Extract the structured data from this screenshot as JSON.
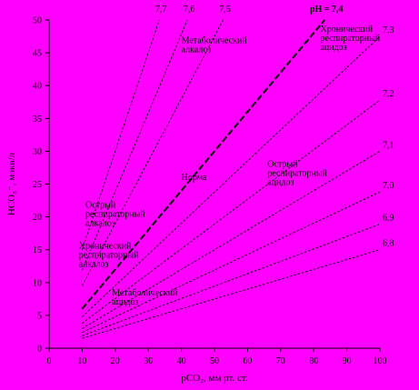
{
  "chart_data": {
    "type": "line",
    "xlabel": "pCO₂, мм рт. ст.",
    "ylabel": "HCO₃⁻, мэкв/л",
    "xlim": [
      0,
      100
    ],
    "ylim": [
      0,
      50
    ],
    "x_ticks": [
      "0",
      "10",
      "20",
      "30",
      "40",
      "50",
      "60",
      "70",
      "80",
      "90",
      "100"
    ],
    "y_ticks": [
      "0",
      "5",
      "10",
      "15",
      "20",
      "25",
      "30",
      "35",
      "40",
      "45",
      "50"
    ],
    "background": "#ff00ff",
    "series": [
      {
        "name": "7,7",
        "x": [
          10,
          33.3
        ],
        "y": [
          15,
          50
        ]
      },
      {
        "name": "7,6",
        "x": [
          10,
          41.8
        ],
        "y": [
          11.9,
          50
        ]
      },
      {
        "name": "7,5",
        "x": [
          10,
          52.6
        ],
        "y": [
          9.5,
          50
        ]
      },
      {
        "name": "pH = 7,4",
        "x": [
          10,
          83.3
        ],
        "y": [
          6,
          50
        ],
        "emphasis": true
      },
      {
        "name": "7,3",
        "x": [
          10,
          100
        ],
        "y": [
          4.8,
          47.5
        ]
      },
      {
        "name": "7,2",
        "x": [
          10,
          100
        ],
        "y": [
          3.8,
          37.8
        ]
      },
      {
        "name": "7,1",
        "x": [
          10,
          100
        ],
        "y": [
          3.0,
          30.0
        ]
      },
      {
        "name": "7,0",
        "x": [
          10,
          100
        ],
        "y": [
          2.4,
          23.8
        ]
      },
      {
        "name": "6,9",
        "x": [
          10,
          100
        ],
        "y": [
          1.9,
          18.9
        ]
      },
      {
        "name": "6,8",
        "x": [
          10,
          100
        ],
        "y": [
          1.5,
          15.0
        ]
      }
    ],
    "annotations": [
      {
        "text": [
          "Метаболический",
          "алкалоз"
        ]
      },
      {
        "text": [
          "Хронический",
          "респираторный",
          "ацидоз"
        ]
      },
      {
        "text": [
          "Норма"
        ]
      },
      {
        "text": [
          "Острый",
          "респираторный",
          "ацидоз"
        ]
      },
      {
        "text": [
          "Острый",
          "респираторный",
          "алкалоз"
        ]
      },
      {
        "text": [
          "Хронический",
          "респираторный",
          "алкалоз"
        ]
      },
      {
        "text": [
          "Метаболический",
          "ацидоз"
        ]
      }
    ]
  }
}
